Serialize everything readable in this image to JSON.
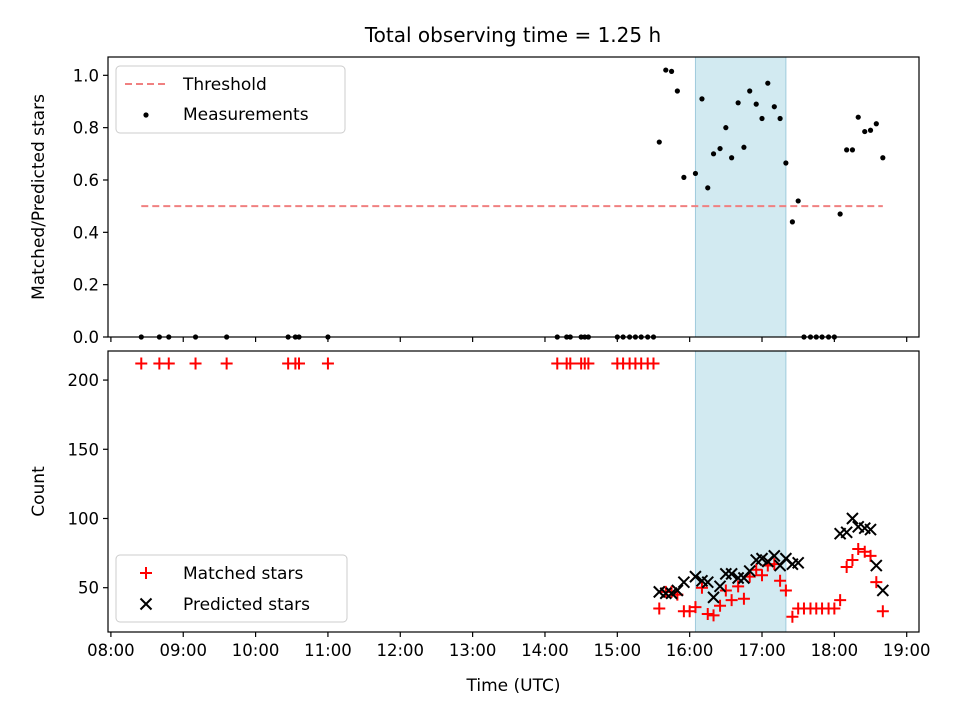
{
  "chart_data": [
    {
      "type": "scatter",
      "title": "Total observing time = 1.25 h",
      "xlabel": "",
      "ylabel": "Matched/Predicted stars",
      "ylim": [
        0,
        1.07
      ],
      "yticks": [
        "0.0",
        "0.2",
        "0.4",
        "0.6",
        "0.8",
        "1.0"
      ],
      "legend": {
        "placement": "top-left",
        "entries": [
          "Threshold",
          "Measurements"
        ]
      },
      "shaded_interval_hours": [
        16.08,
        17.33
      ],
      "threshold": {
        "name": "Threshold",
        "value": 0.5,
        "x_range_hours": [
          8.42,
          18.67
        ],
        "color": "#f08080",
        "style": "dashed"
      },
      "series": [
        {
          "name": "Measurements",
          "marker": "dot",
          "color": "#000000",
          "points": [
            [
              8.42,
              0
            ],
            [
              8.67,
              0
            ],
            [
              8.8,
              0
            ],
            [
              9.17,
              0
            ],
            [
              9.6,
              0
            ],
            [
              10.45,
              0
            ],
            [
              10.55,
              0
            ],
            [
              10.6,
              0
            ],
            [
              11.0,
              0
            ],
            [
              14.17,
              0
            ],
            [
              14.3,
              0
            ],
            [
              14.35,
              0
            ],
            [
              14.5,
              0
            ],
            [
              14.55,
              0
            ],
            [
              14.6,
              0
            ],
            [
              15.0,
              0
            ],
            [
              15.08,
              0
            ],
            [
              15.17,
              0
            ],
            [
              15.25,
              0
            ],
            [
              15.33,
              0
            ],
            [
              15.42,
              0
            ],
            [
              15.5,
              0
            ],
            [
              15.58,
              0.745
            ],
            [
              15.67,
              1.02
            ],
            [
              15.75,
              1.015
            ],
            [
              15.83,
              0.94
            ],
            [
              15.92,
              0.61
            ],
            [
              16.08,
              0.625
            ],
            [
              16.17,
              0.91
            ],
            [
              16.25,
              0.57
            ],
            [
              16.33,
              0.7
            ],
            [
              16.42,
              0.72
            ],
            [
              16.5,
              0.8
            ],
            [
              16.58,
              0.685
            ],
            [
              16.67,
              0.895
            ],
            [
              16.75,
              0.725
            ],
            [
              16.83,
              0.94
            ],
            [
              16.92,
              0.89
            ],
            [
              17.0,
              0.835
            ],
            [
              17.08,
              0.97
            ],
            [
              17.17,
              0.88
            ],
            [
              17.25,
              0.835
            ],
            [
              17.33,
              0.665
            ],
            [
              17.42,
              0.44
            ],
            [
              17.5,
              0.52
            ],
            [
              17.58,
              0
            ],
            [
              17.67,
              0
            ],
            [
              17.75,
              0
            ],
            [
              17.83,
              0
            ],
            [
              17.92,
              0
            ],
            [
              18.0,
              0
            ],
            [
              18.08,
              0.47
            ],
            [
              18.17,
              0.715
            ],
            [
              18.25,
              0.715
            ],
            [
              18.33,
              0.84
            ],
            [
              18.42,
              0.785
            ],
            [
              18.5,
              0.79
            ],
            [
              18.58,
              0.815
            ],
            [
              18.67,
              0.685
            ]
          ]
        }
      ]
    },
    {
      "type": "scatter",
      "title": "",
      "xlabel": "Time (UTC)",
      "ylabel": "Count",
      "xlim_hours": [
        7.96,
        19.17
      ],
      "ylim": [
        18,
        221
      ],
      "xticks": [
        "08:00",
        "09:00",
        "10:00",
        "11:00",
        "12:00",
        "13:00",
        "14:00",
        "15:00",
        "16:00",
        "17:00",
        "18:00",
        "19:00"
      ],
      "yticks": [
        "50",
        "100",
        "150",
        "200"
      ],
      "legend": {
        "placement": "bottom-left",
        "entries": [
          "Matched stars",
          "Predicted stars"
        ]
      },
      "shaded_interval_hours": [
        16.08,
        17.33
      ],
      "series": [
        {
          "name": "Matched stars",
          "marker": "plus",
          "color": "#ff0000",
          "points": [
            [
              8.42,
              212
            ],
            [
              8.67,
              212
            ],
            [
              8.8,
              212
            ],
            [
              9.17,
              212
            ],
            [
              9.6,
              212
            ],
            [
              10.45,
              212
            ],
            [
              10.55,
              212
            ],
            [
              10.6,
              212
            ],
            [
              11.0,
              212
            ],
            [
              14.17,
              212
            ],
            [
              14.3,
              212
            ],
            [
              14.35,
              212
            ],
            [
              14.5,
              212
            ],
            [
              14.55,
              212
            ],
            [
              14.6,
              212
            ],
            [
              15.0,
              212
            ],
            [
              15.08,
              212
            ],
            [
              15.17,
              212
            ],
            [
              15.25,
              212
            ],
            [
              15.33,
              212
            ],
            [
              15.42,
              212
            ],
            [
              15.5,
              212
            ],
            [
              15.58,
              35
            ],
            [
              15.67,
              47
            ],
            [
              15.75,
              47
            ],
            [
              15.83,
              45
            ],
            [
              15.92,
              33
            ],
            [
              16.0,
              33
            ],
            [
              16.08,
              36
            ],
            [
              16.17,
              50
            ],
            [
              16.25,
              31
            ],
            [
              16.33,
              30
            ],
            [
              16.42,
              37
            ],
            [
              16.5,
              48
            ],
            [
              16.58,
              41
            ],
            [
              16.67,
              51
            ],
            [
              16.75,
              42
            ],
            [
              16.83,
              58
            ],
            [
              16.92,
              63
            ],
            [
              17.0,
              59
            ],
            [
              17.08,
              66
            ],
            [
              17.17,
              67
            ],
            [
              17.25,
              55
            ],
            [
              17.33,
              48
            ],
            [
              17.42,
              29
            ],
            [
              17.5,
              35
            ],
            [
              17.58,
              35
            ],
            [
              17.67,
              35
            ],
            [
              17.75,
              35
            ],
            [
              17.83,
              35
            ],
            [
              17.92,
              35
            ],
            [
              18.0,
              35
            ],
            [
              18.08,
              41
            ],
            [
              18.17,
              65
            ],
            [
              18.25,
              70
            ],
            [
              18.33,
              78
            ],
            [
              18.42,
              76
            ],
            [
              18.5,
              73
            ],
            [
              18.58,
              54
            ],
            [
              18.67,
              33
            ]
          ]
        },
        {
          "name": "Predicted stars",
          "marker": "cross",
          "color": "#000000",
          "points": [
            [
              15.58,
              47
            ],
            [
              15.67,
              46
            ],
            [
              15.75,
              46
            ],
            [
              15.83,
              48
            ],
            [
              15.92,
              54
            ],
            [
              16.08,
              58
            ],
            [
              16.17,
              55
            ],
            [
              16.25,
              54
            ],
            [
              16.33,
              43
            ],
            [
              16.42,
              51
            ],
            [
              16.5,
              60
            ],
            [
              16.58,
              60
            ],
            [
              16.67,
              57
            ],
            [
              16.75,
              57
            ],
            [
              16.83,
              62
            ],
            [
              16.92,
              70
            ],
            [
              17.0,
              71
            ],
            [
              17.08,
              69
            ],
            [
              17.17,
              73
            ],
            [
              17.25,
              66
            ],
            [
              17.33,
              71
            ],
            [
              17.42,
              67
            ],
            [
              17.5,
              68
            ],
            [
              18.08,
              89
            ],
            [
              18.17,
              90
            ],
            [
              18.25,
              100
            ],
            [
              18.33,
              94
            ],
            [
              18.42,
              93
            ],
            [
              18.5,
              92
            ],
            [
              18.58,
              66
            ],
            [
              18.67,
              48
            ]
          ]
        }
      ]
    }
  ]
}
